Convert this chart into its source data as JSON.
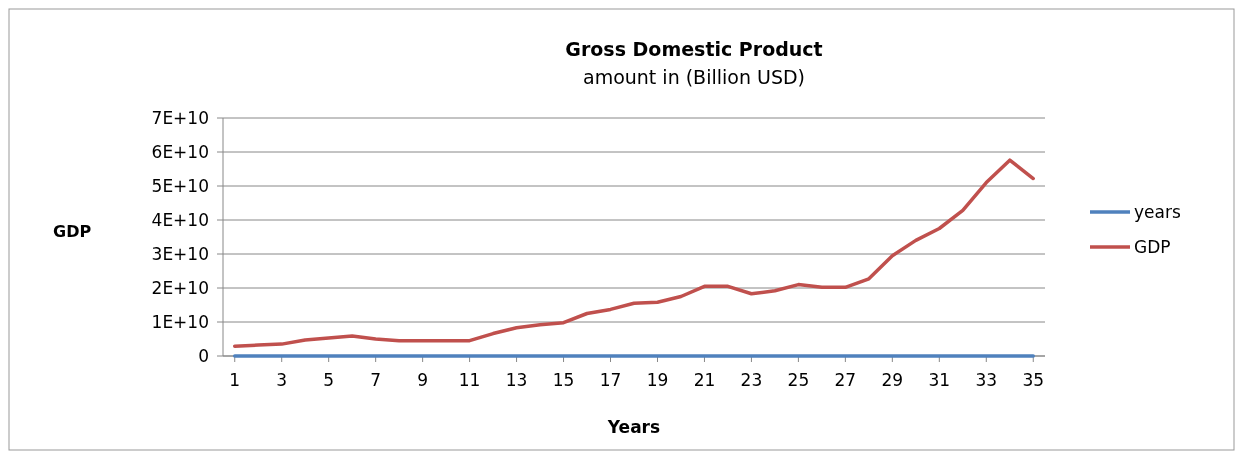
{
  "chart_data": {
    "type": "line",
    "title": "Gross Domestic Product",
    "subtitle": "amount in (Billion USD)",
    "xlabel": "Years",
    "ylabel": "GDP",
    "x": [
      1,
      2,
      3,
      4,
      5,
      6,
      7,
      8,
      9,
      10,
      11,
      12,
      13,
      14,
      15,
      16,
      17,
      18,
      19,
      20,
      21,
      22,
      23,
      24,
      25,
      26,
      27,
      28,
      29,
      30,
      31,
      32,
      33,
      34,
      35
    ],
    "xlim": [
      0.5,
      35.5
    ],
    "xticks": [
      1,
      3,
      5,
      7,
      9,
      11,
      13,
      15,
      17,
      19,
      21,
      23,
      25,
      27,
      29,
      31,
      33,
      35
    ],
    "ylim": [
      0,
      70000000000
    ],
    "yticks": [
      0,
      {
        "value": 10000000000,
        "label": "1E+10"
      },
      {
        "value": 20000000000,
        "label": "2E+10"
      },
      {
        "value": 30000000000,
        "label": "3E+10"
      },
      {
        "value": 40000000000,
        "label": "4E+10"
      },
      {
        "value": 50000000000,
        "label": "5E+10"
      },
      {
        "value": 60000000000,
        "label": "6E+10"
      },
      {
        "value": 70000000000,
        "label": "7E+10"
      }
    ],
    "grid": "y",
    "legend": "right",
    "series": [
      {
        "name": "years",
        "color": "#4f81bd",
        "values": [
          0,
          0,
          0,
          0,
          0,
          0,
          0,
          0,
          0,
          0,
          0,
          0,
          0,
          0,
          0,
          0,
          0,
          0,
          0,
          0,
          0,
          0,
          0,
          0,
          0,
          0,
          0,
          0,
          0,
          0,
          0,
          0,
          0,
          0,
          0
        ]
      },
      {
        "name": "GDP",
        "color": "#c0504d",
        "values": [
          2900000000,
          3200000000,
          3500000000,
          4700000000,
          5300000000,
          5900000000,
          5000000000,
          4500000000,
          4500000000,
          4500000000,
          4500000000,
          6600000000,
          8300000000,
          9200000000,
          9800000000,
          12500000000,
          13700000000,
          15500000000,
          15800000000,
          17500000000,
          20500000000,
          20500000000,
          18300000000,
          19200000000,
          21000000000,
          20200000000,
          20200000000,
          22700000000,
          29500000000,
          34000000000,
          37500000000,
          42800000000,
          51000000000,
          57600000000,
          52200000000
        ]
      }
    ]
  }
}
